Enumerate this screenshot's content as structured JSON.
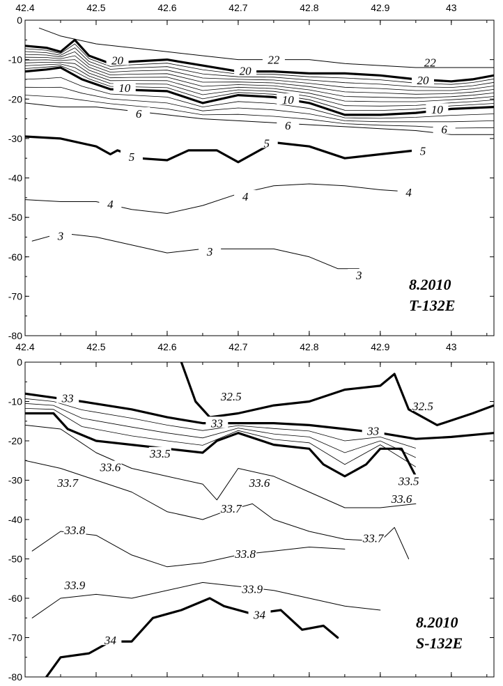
{
  "chart_data": [
    {
      "type": "contour",
      "panel": "top",
      "variable": "T",
      "stamp_lines": [
        "8.2010",
        "T-132E"
      ],
      "x_ticks": [
        "42.4",
        "42.5",
        "42.6",
        "42.7",
        "42.8",
        "42.9",
        "43"
      ],
      "y_ticks": [
        "0",
        "-10",
        "-20",
        "-30",
        "-40",
        "-50",
        "-60",
        "-70",
        "-80"
      ],
      "xlim": [
        42.4,
        43.06
      ],
      "ylim": [
        -80,
        0
      ],
      "contours": [
        {
          "level": 22,
          "bold": false,
          "labels": [
            [
              42.75,
              -10.3
            ],
            [
              42.97,
              -11
            ]
          ],
          "points": [
            [
              42.42,
              -2
            ],
            [
              42.45,
              -4
            ],
            [
              42.5,
              -6
            ],
            [
              42.55,
              -7
            ],
            [
              42.6,
              -8
            ],
            [
              42.65,
              -9
            ],
            [
              42.7,
              -10
            ],
            [
              42.75,
              -10
            ],
            [
              42.8,
              -10
            ],
            [
              42.85,
              -11
            ],
            [
              42.9,
              -11.5
            ],
            [
              42.95,
              -12
            ],
            [
              43.0,
              -12
            ],
            [
              43.06,
              -12
            ]
          ]
        },
        {
          "level": 20,
          "bold": true,
          "labels": [
            [
              42.53,
              -10.5
            ],
            [
              42.71,
              -13.2
            ],
            [
              42.96,
              -15.5
            ]
          ],
          "points": [
            [
              42.4,
              -6.5
            ],
            [
              42.43,
              -7
            ],
            [
              42.45,
              -8
            ],
            [
              42.47,
              -5
            ],
            [
              42.49,
              -9
            ],
            [
              42.52,
              -11
            ],
            [
              42.55,
              -10.5
            ],
            [
              42.6,
              -10
            ],
            [
              42.65,
              -11.5
            ],
            [
              42.7,
              -13
            ],
            [
              42.75,
              -13
            ],
            [
              42.8,
              -13.5
            ],
            [
              42.85,
              -13.5
            ],
            [
              42.9,
              -14
            ],
            [
              42.95,
              -15
            ],
            [
              43.0,
              -15.5
            ],
            [
              43.03,
              -15
            ],
            [
              43.06,
              -14
            ]
          ]
        },
        {
          "level": 10,
          "bold": true,
          "labels": [
            [
              42.54,
              -17.5
            ],
            [
              42.77,
              -20.5
            ],
            [
              42.98,
              -23
            ]
          ],
          "points": [
            [
              42.4,
              -13
            ],
            [
              42.43,
              -12.5
            ],
            [
              42.45,
              -12
            ],
            [
              42.48,
              -15
            ],
            [
              42.52,
              -17.5
            ],
            [
              42.6,
              -18
            ],
            [
              42.65,
              -21
            ],
            [
              42.7,
              -19
            ],
            [
              42.75,
              -19.5
            ],
            [
              42.8,
              -21
            ],
            [
              42.85,
              -24
            ],
            [
              42.9,
              -24
            ],
            [
              42.95,
              -23.5
            ],
            [
              43.0,
              -22.5
            ],
            [
              43.06,
              -22
            ]
          ]
        },
        {
          "level": 6,
          "bold": false,
          "labels": [
            [
              42.56,
              -24
            ],
            [
              42.77,
              -27
            ],
            [
              42.99,
              -28
            ]
          ],
          "points": [
            [
              42.4,
              -21
            ],
            [
              42.45,
              -22
            ],
            [
              42.5,
              -22
            ],
            [
              42.55,
              -23
            ],
            [
              42.6,
              -24
            ],
            [
              42.65,
              -25
            ],
            [
              42.7,
              -25.5
            ],
            [
              42.75,
              -26
            ],
            [
              42.8,
              -26.5
            ],
            [
              42.85,
              -27
            ],
            [
              42.9,
              -27.5
            ],
            [
              42.95,
              -28
            ],
            [
              43.0,
              -29
            ],
            [
              43.06,
              -29
            ]
          ]
        },
        {
          "level": 5,
          "bold": true,
          "labels": [
            [
              42.55,
              -35
            ],
            [
              42.74,
              -31.5
            ],
            [
              42.96,
              -33.5
            ]
          ],
          "points": [
            [
              42.4,
              -29.5
            ],
            [
              42.45,
              -30
            ],
            [
              42.5,
              -32
            ],
            [
              42.52,
              -34
            ],
            [
              42.53,
              -33
            ],
            [
              42.56,
              -35
            ],
            [
              42.6,
              -35.5
            ],
            [
              42.63,
              -33
            ],
            [
              42.67,
              -33
            ],
            [
              42.7,
              -36
            ],
            [
              42.73,
              -33
            ],
            [
              42.75,
              -31
            ],
            [
              42.8,
              -32
            ],
            [
              42.85,
              -35
            ],
            [
              42.9,
              -34
            ],
            [
              42.95,
              -33
            ]
          ]
        },
        {
          "level": 4,
          "bold": false,
          "labels": [
            [
              42.52,
              -47
            ],
            [
              42.71,
              -45
            ],
            [
              42.94,
              -44
            ]
          ],
          "points": [
            [
              42.4,
              -45.5
            ],
            [
              42.45,
              -46
            ],
            [
              42.5,
              -46
            ],
            [
              42.55,
              -48
            ],
            [
              42.6,
              -49
            ],
            [
              42.65,
              -47
            ],
            [
              42.7,
              -44
            ],
            [
              42.75,
              -42
            ],
            [
              42.8,
              -41.5
            ],
            [
              42.85,
              -42
            ],
            [
              42.9,
              -43
            ],
            [
              42.94,
              -43.5
            ]
          ]
        },
        {
          "level": 3,
          "bold": false,
          "labels": [
            [
              42.45,
              -55
            ],
            [
              42.66,
              -59
            ],
            [
              42.87,
              -65
            ]
          ],
          "points": [
            [
              42.41,
              -56
            ],
            [
              42.45,
              -54
            ],
            [
              42.5,
              -55
            ],
            [
              42.55,
              -57
            ],
            [
              42.6,
              -59
            ],
            [
              42.65,
              -58
            ],
            [
              42.7,
              -58
            ],
            [
              42.75,
              -58
            ],
            [
              42.8,
              -60
            ],
            [
              42.84,
              -63
            ],
            [
              42.87,
              -63
            ]
          ]
        }
      ]
    },
    {
      "type": "contour",
      "panel": "bottom",
      "variable": "S",
      "stamp_lines": [
        "8.2010",
        "S-132E"
      ],
      "x_ticks": [
        "42.4",
        "42.5",
        "42.6",
        "42.7",
        "42.8",
        "42.9",
        "43"
      ],
      "y_ticks": [
        "0",
        "-10",
        "-20",
        "-30",
        "-40",
        "-50",
        "-60",
        "-70",
        "-80"
      ],
      "xlim": [
        42.4,
        43.06
      ],
      "ylim": [
        -80,
        0
      ],
      "contours": [
        {
          "level": 32.5,
          "bold": true,
          "labels": [
            [
              42.69,
              -9
            ],
            [
              42.96,
              -11.5
            ]
          ],
          "points": [
            [
              42.62,
              0
            ],
            [
              42.64,
              -10
            ],
            [
              42.66,
              -14
            ],
            [
              42.7,
              -13
            ],
            [
              42.75,
              -11
            ],
            [
              42.8,
              -10
            ],
            [
              42.85,
              -7
            ],
            [
              42.9,
              -6
            ],
            [
              42.92,
              -3
            ],
            [
              42.94,
              -12
            ],
            [
              42.98,
              -16
            ],
            [
              43.03,
              -13
            ],
            [
              43.06,
              -11
            ]
          ]
        },
        {
          "level": 33,
          "bold": true,
          "labels": [
            [
              42.46,
              -9.5
            ],
            [
              42.67,
              -15.8
            ],
            [
              42.89,
              -17.8
            ]
          ],
          "points": [
            [
              42.4,
              -8
            ],
            [
              42.44,
              -9
            ],
            [
              42.48,
              -10
            ],
            [
              42.55,
              -12
            ],
            [
              42.6,
              -14
            ],
            [
              42.65,
              -15.5
            ],
            [
              42.7,
              -15.5
            ],
            [
              42.75,
              -15.5
            ],
            [
              42.8,
              -16
            ],
            [
              42.85,
              -17
            ],
            [
              42.9,
              -18
            ],
            [
              42.95,
              -19.5
            ],
            [
              43.0,
              -19
            ],
            [
              43.06,
              -18
            ]
          ]
        },
        {
          "level": 33.5,
          "bold": true,
          "labels": [
            [
              42.59,
              -23.5
            ],
            [
              42.94,
              -30.5
            ]
          ],
          "points": [
            [
              42.4,
              -13
            ],
            [
              42.44,
              -13
            ],
            [
              42.46,
              -17
            ],
            [
              42.5,
              -20
            ],
            [
              42.55,
              -21
            ],
            [
              42.6,
              -22
            ],
            [
              42.65,
              -23
            ],
            [
              42.67,
              -20
            ],
            [
              42.7,
              -18
            ],
            [
              42.75,
              -21
            ],
            [
              42.8,
              -22
            ],
            [
              42.82,
              -26
            ],
            [
              42.85,
              -29
            ],
            [
              42.88,
              -26
            ],
            [
              42.9,
              -22
            ],
            [
              42.93,
              -22
            ],
            [
              42.95,
              -29
            ]
          ]
        },
        {
          "level": 33.6,
          "bold": false,
          "labels": [
            [
              42.52,
              -27
            ],
            [
              42.73,
              -31
            ],
            [
              42.93,
              -35
            ]
          ],
          "points": [
            [
              42.4,
              -16
            ],
            [
              42.45,
              -17
            ],
            [
              42.5,
              -23
            ],
            [
              42.55,
              -27
            ],
            [
              42.6,
              -29
            ],
            [
              42.65,
              -31
            ],
            [
              42.67,
              -35
            ],
            [
              42.7,
              -27
            ],
            [
              42.75,
              -29
            ],
            [
              42.8,
              -33
            ],
            [
              42.85,
              -37
            ],
            [
              42.9,
              -37
            ],
            [
              42.95,
              -36
            ]
          ]
        },
        {
          "level": 33.7,
          "bold": false,
          "labels": [
            [
              42.46,
              -31
            ],
            [
              42.69,
              -37.5
            ],
            [
              42.89,
              -45
            ]
          ],
          "points": [
            [
              42.4,
              -25
            ],
            [
              42.45,
              -27
            ],
            [
              42.5,
              -30
            ],
            [
              42.55,
              -33
            ],
            [
              42.6,
              -38
            ],
            [
              42.65,
              -40
            ],
            [
              42.68,
              -38
            ],
            [
              42.72,
              -36
            ],
            [
              42.75,
              -40
            ],
            [
              42.8,
              -43
            ],
            [
              42.85,
              -45
            ],
            [
              42.9,
              -45.5
            ],
            [
              42.92,
              -42
            ],
            [
              42.94,
              -50
            ]
          ]
        },
        {
          "level": 33.8,
          "bold": false,
          "labels": [
            [
              42.47,
              -43
            ],
            [
              42.71,
              -49
            ]
          ],
          "points": [
            [
              42.41,
              -48
            ],
            [
              42.45,
              -43
            ],
            [
              42.5,
              -44
            ],
            [
              42.55,
              -49
            ],
            [
              42.6,
              -52
            ],
            [
              42.65,
              -51
            ],
            [
              42.7,
              -49
            ],
            [
              42.75,
              -48
            ],
            [
              42.8,
              -47
            ],
            [
              42.85,
              -47.5
            ]
          ]
        },
        {
          "level": 33.9,
          "bold": false,
          "labels": [
            [
              42.47,
              -57
            ],
            [
              42.72,
              -58
            ]
          ],
          "points": [
            [
              42.41,
              -65
            ],
            [
              42.45,
              -60
            ],
            [
              42.5,
              -59
            ],
            [
              42.55,
              -60
            ],
            [
              42.6,
              -58
            ],
            [
              42.65,
              -56
            ],
            [
              42.7,
              -57
            ],
            [
              42.75,
              -58
            ],
            [
              42.8,
              -60
            ],
            [
              42.85,
              -62
            ],
            [
              42.9,
              -63
            ]
          ]
        },
        {
          "level": 34,
          "bold": true,
          "labels": [
            [
              42.52,
              -71
            ],
            [
              42.73,
              -64.5
            ]
          ],
          "points": [
            [
              42.43,
              -80
            ],
            [
              42.45,
              -75
            ],
            [
              42.49,
              -74
            ],
            [
              42.52,
              -71
            ],
            [
              42.55,
              -71
            ],
            [
              42.58,
              -65
            ],
            [
              42.62,
              -63
            ],
            [
              42.66,
              -60
            ],
            [
              42.68,
              -62
            ],
            [
              42.72,
              -64
            ],
            [
              42.76,
              -63
            ],
            [
              42.79,
              -68
            ],
            [
              42.82,
              -67
            ],
            [
              42.84,
              -70
            ]
          ]
        }
      ]
    }
  ]
}
